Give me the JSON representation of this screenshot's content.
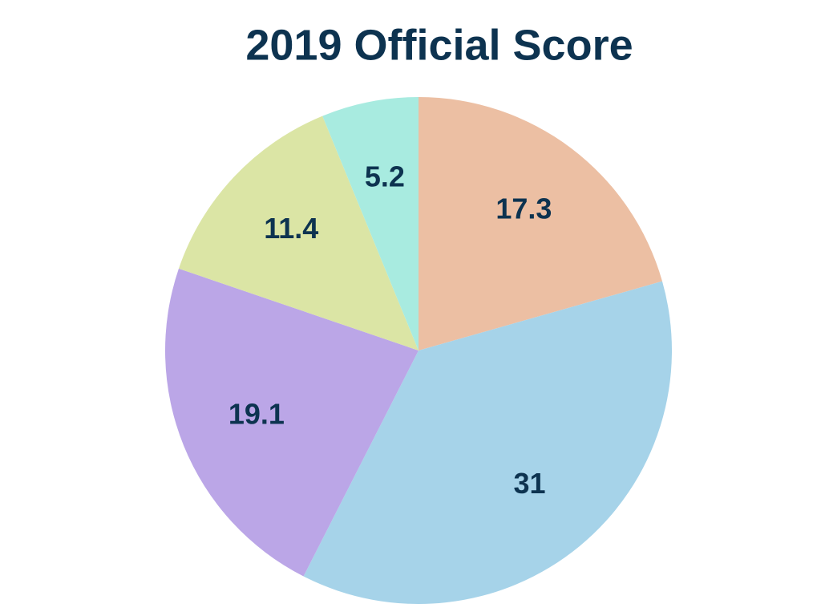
{
  "chart_data": {
    "type": "pie",
    "title": "2019 Official Score",
    "values": [
      17.3,
      31,
      19.1,
      11.4,
      5.2
    ],
    "colors": [
      "#ecbfa3",
      "#a6d3e9",
      "#bba6e7",
      "#dbe5a5",
      "#a8ebe0"
    ]
  }
}
